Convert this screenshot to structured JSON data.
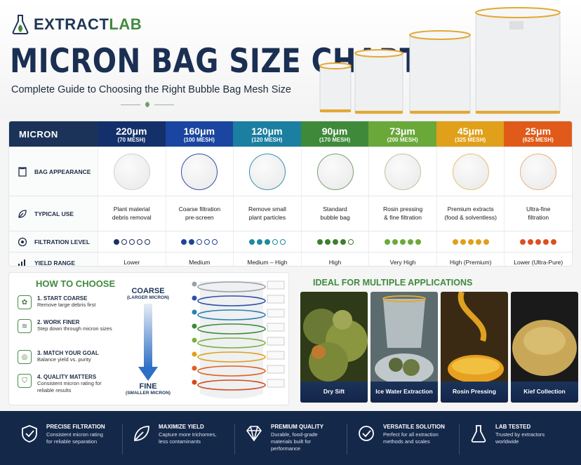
{
  "brand": {
    "name_a": "EXTRACT",
    "name_b": "LAB"
  },
  "title": "MICRON BAG SIZE CHART",
  "subtitle": "Complete Guide to Choosing the Right Bubble Bag Mesh Size",
  "table": {
    "header_label": "MICRON",
    "row_labels": {
      "appearance": "BAG APPEARANCE",
      "use": "TYPICAL USE",
      "filtration": "FILTRATION LEVEL",
      "yield": "YIELD RANGE"
    },
    "columns": [
      {
        "micron": "220μm",
        "mesh": "(70 MESH)",
        "color": "#14306a",
        "ring": "#d0d0d0",
        "use": [
          "Plant material",
          "debris removal"
        ],
        "level": 1,
        "dot": "#1b2f60",
        "yield": "Lower"
      },
      {
        "micron": "160μm",
        "mesh": "(100 MESH)",
        "color": "#1a45a0",
        "ring": "#3050a8",
        "use": [
          "Coarse filtration",
          "pre-screen"
        ],
        "level": 2,
        "dot": "#1f4498",
        "yield": "Medium"
      },
      {
        "micron": "120μm",
        "mesh": "(120 MESH)",
        "color": "#1a7fa0",
        "ring": "#3a90b0",
        "use": [
          "Remove small",
          "plant particles"
        ],
        "level": 3,
        "dot": "#1d8aa0",
        "yield": "Medium – High"
      },
      {
        "micron": "90μm",
        "mesh": "(170 MESH)",
        "color": "#3f8a3a",
        "ring": "#7aa070",
        "use": [
          "Standard",
          "bubble bag"
        ],
        "level": 4,
        "dot": "#3f7f30",
        "yield": "High"
      },
      {
        "micron": "73μm",
        "mesh": "(200 MESH)",
        "color": "#6aa83a",
        "ring": "#b5c8a0",
        "use": [
          "Rosin pressing",
          "& fine filtration"
        ],
        "level": 5,
        "dot": "#6aaa3a",
        "yield": "Very High"
      },
      {
        "micron": "45μm",
        "mesh": "(325 MESH)",
        "color": "#e0a01a",
        "ring": "#e8c070",
        "use": [
          "Premium extracts",
          "(food & solventless)"
        ],
        "level": 5,
        "dot": "#e0a01a",
        "yield": "High (Premium)"
      },
      {
        "micron": "25μm",
        "mesh": "(625 MESH)",
        "color": "#e05a1a",
        "ring": "#e8b080",
        "use": [
          "Ultra-fine",
          "filtration"
        ],
        "level": 5,
        "dot": "#dc5020",
        "yield": "Lower (Ultra-Pure)"
      }
    ]
  },
  "how_to_choose": {
    "title": "HOW TO CHOOSE",
    "steps": [
      {
        "title": "1. START COARSE",
        "desc": "Remove large debris first",
        "icon": "leaf-icon"
      },
      {
        "title": "2. WORK FINER",
        "desc": "Step down through micron sizes",
        "icon": "layers-icon"
      },
      {
        "title": "3. MATCH YOUR GOAL",
        "desc": "Balance yield vs. purity",
        "icon": "target-icon"
      },
      {
        "title": "4. QUALITY MATTERS",
        "desc": "Consistent micron rating for reliable results",
        "icon": "shield-icon"
      }
    ],
    "coarse": "COARSE",
    "coarse_sub": "(LARGER MICRON)",
    "fine": "FINE",
    "fine_sub": "(SMALLER MICRON)"
  },
  "applications": {
    "title": "IDEAL FOR MULTIPLE APPLICATIONS",
    "items": [
      {
        "label": "Dry Sift",
        "bg": "#3d4a1c"
      },
      {
        "label": "Ice Water Extraction",
        "bg": "#6a7a6c"
      },
      {
        "label": "Rosin Pressing",
        "bg": "#c98a14"
      },
      {
        "label": "Kief Collection",
        "bg": "#c8a858"
      }
    ]
  },
  "footer": [
    {
      "title": "PRECISE FILTRATION",
      "desc": "Consistent micron rating for reliable separation",
      "icon": "shield-check-icon"
    },
    {
      "title": "MAXIMIZE YIELD",
      "desc": "Capture more trichomes, less contaminants",
      "icon": "leaf-icon"
    },
    {
      "title": "PREMIUM QUALITY",
      "desc": "Durable, food-grade materials built for performance",
      "icon": "diamond-icon"
    },
    {
      "title": "VERSATILE SOLUTION",
      "desc": "Perfect for all extraction methods and scales",
      "icon": "check-circle-icon"
    },
    {
      "title": "LAB TESTED",
      "desc": "Trusted by extractors worldwide",
      "icon": "flask-icon"
    }
  ]
}
